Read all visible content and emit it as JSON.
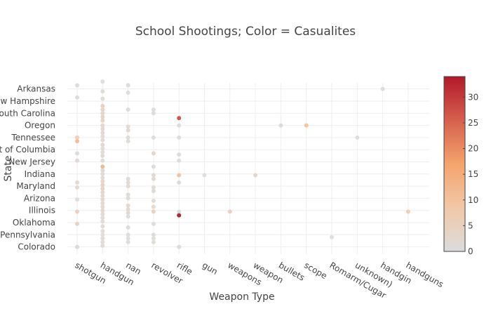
{
  "chart_data": {
    "type": "scatter",
    "title": "School Shootings; Color = Casualites",
    "xlabel": "Weapon Type",
    "ylabel": "State",
    "x_categories": [
      "shotgun",
      "handgun",
      "nan",
      "revolver",
      "rifle",
      "gun",
      "weapons",
      "weapon",
      "bullets",
      "scope",
      "Romarm/Cugar",
      "unknown)",
      "handgin",
      "handguns"
    ],
    "y_tick_labels": [
      "Arkansas",
      "New Hampshire",
      "South Carolina",
      "Oregon",
      "Tennessee",
      "District of Columbia",
      "New Jersey",
      "Indiana",
      "Maryland",
      "Arizona",
      "Illinois",
      "Oklahoma",
      "Pennsylvania",
      "Colorado"
    ],
    "y_tick_positions": [
      13,
      12,
      11,
      10,
      9,
      8,
      7,
      6,
      5,
      4,
      3,
      2,
      1,
      0
    ],
    "y_range": [
      -0.6,
      13.5
    ],
    "grid": true,
    "legend": "colorbar-right",
    "colorscale": {
      "name": "RdBu-reversed-half",
      "min": 0,
      "max": 34,
      "ticks": [
        0,
        5,
        10,
        15,
        20,
        25,
        30
      ],
      "stops": [
        "#dcdcdc",
        "#f1c8a8",
        "#f4a46c",
        "#d6604d",
        "#b2182b"
      ]
    },
    "points": [
      {
        "x": "shotgun",
        "y": 13.3,
        "c": 1
      },
      {
        "x": "handgun",
        "y": 13.6,
        "c": 0
      },
      {
        "x": "nan",
        "y": 13.3,
        "c": 1
      },
      {
        "x": "handgun",
        "y": 12.8,
        "c": 1
      },
      {
        "x": "nan",
        "y": 12.7,
        "c": 0
      },
      {
        "x": "handgin",
        "y": 13.0,
        "c": 1
      },
      {
        "x": "shotgun",
        "y": 12.3,
        "c": 1
      },
      {
        "x": "handgun",
        "y": 12.2,
        "c": 1
      },
      {
        "x": "handgun",
        "y": 11.6,
        "c": 5
      },
      {
        "x": "handgun",
        "y": 11.3,
        "c": 3
      },
      {
        "x": "handgun",
        "y": 11.0,
        "c": 3
      },
      {
        "x": "nan",
        "y": 11.3,
        "c": 1
      },
      {
        "x": "revolver",
        "y": 11.3,
        "c": 1
      },
      {
        "x": "revolver",
        "y": 11.0,
        "c": 1
      },
      {
        "x": "handgun",
        "y": 10.7,
        "c": 4
      },
      {
        "x": "handgun",
        "y": 10.4,
        "c": 4
      },
      {
        "x": "rifle",
        "y": 10.6,
        "c": 28
      },
      {
        "x": "handgun",
        "y": 10.0,
        "c": 2
      },
      {
        "x": "handgun",
        "y": 9.7,
        "c": 2
      },
      {
        "x": "nan",
        "y": 9.9,
        "c": 1
      },
      {
        "x": "rifle",
        "y": 10.0,
        "c": 1
      },
      {
        "x": "bullets",
        "y": 10.0,
        "c": 1
      },
      {
        "x": "scope",
        "y": 10.0,
        "c": 10
      },
      {
        "x": "handgun",
        "y": 9.4,
        "c": 2
      },
      {
        "x": "nan",
        "y": 9.6,
        "c": 2
      },
      {
        "x": "handgun",
        "y": 9.1,
        "c": 1
      },
      {
        "x": "shotgun",
        "y": 9.0,
        "c": 7
      },
      {
        "x": "shotgun",
        "y": 8.7,
        "c": 12
      },
      {
        "x": "handgun",
        "y": 8.8,
        "c": 2
      },
      {
        "x": "nan",
        "y": 9.0,
        "c": 1
      },
      {
        "x": "nan",
        "y": 8.7,
        "c": 1
      },
      {
        "x": "revolver",
        "y": 9.0,
        "c": 1
      },
      {
        "x": "rifle",
        "y": 9.0,
        "c": 1
      },
      {
        "x": "unknown)",
        "y": 9.0,
        "c": 1
      },
      {
        "x": "handgun",
        "y": 8.4,
        "c": 2
      },
      {
        "x": "handgun",
        "y": 8.1,
        "c": 1
      },
      {
        "x": "handgun",
        "y": 7.8,
        "c": 1
      },
      {
        "x": "shotgun",
        "y": 7.7,
        "c": 1
      },
      {
        "x": "revolver",
        "y": 7.7,
        "c": 4
      },
      {
        "x": "rifle",
        "y": 7.6,
        "c": 1
      },
      {
        "x": "handgun",
        "y": 7.5,
        "c": 2
      },
      {
        "x": "shotgun",
        "y": 7.1,
        "c": 2
      },
      {
        "x": "handgun",
        "y": 7.1,
        "c": 1
      },
      {
        "x": "rifle",
        "y": 7.1,
        "c": 1
      },
      {
        "x": "handgun",
        "y": 6.6,
        "c": 13
      },
      {
        "x": "revolver",
        "y": 6.6,
        "c": 1
      },
      {
        "x": "handgun",
        "y": 6.3,
        "c": 2
      },
      {
        "x": "handgun",
        "y": 6.0,
        "c": 1
      },
      {
        "x": "handgun",
        "y": 5.7,
        "c": 1
      },
      {
        "x": "revolver",
        "y": 5.9,
        "c": 2
      },
      {
        "x": "rifle",
        "y": 5.9,
        "c": 10
      },
      {
        "x": "gun",
        "y": 5.9,
        "c": 1
      },
      {
        "x": "weapon",
        "y": 5.9,
        "c": 3
      },
      {
        "x": "nan",
        "y": 5.6,
        "c": 1
      },
      {
        "x": "revolver",
        "y": 5.6,
        "c": 2
      },
      {
        "x": "shotgun",
        "y": 5.3,
        "c": 2
      },
      {
        "x": "handgun",
        "y": 5.4,
        "c": 3
      },
      {
        "x": "nan",
        "y": 5.3,
        "c": 1
      },
      {
        "x": "rifle",
        "y": 5.3,
        "c": 1
      },
      {
        "x": "shotgun",
        "y": 4.9,
        "c": 2
      },
      {
        "x": "handgun",
        "y": 5.1,
        "c": 5
      },
      {
        "x": "nan",
        "y": 5.0,
        "c": 2
      },
      {
        "x": "handgun",
        "y": 4.8,
        "c": 5
      },
      {
        "x": "revolver",
        "y": 4.9,
        "c": 1
      },
      {
        "x": "revolver",
        "y": 4.6,
        "c": 2
      },
      {
        "x": "handgun",
        "y": 4.5,
        "c": 3
      },
      {
        "x": "handgun",
        "y": 4.2,
        "c": 2
      },
      {
        "x": "nan",
        "y": 4.3,
        "c": 1
      },
      {
        "x": "shotgun",
        "y": 3.9,
        "c": 0
      },
      {
        "x": "handgun",
        "y": 3.9,
        "c": 3
      },
      {
        "x": "nan",
        "y": 4.0,
        "c": 1
      },
      {
        "x": "revolver",
        "y": 3.8,
        "c": 1
      },
      {
        "x": "handgun",
        "y": 3.6,
        "c": 2
      },
      {
        "x": "handgun",
        "y": 3.3,
        "c": 3
      },
      {
        "x": "nan",
        "y": 3.4,
        "c": 2
      },
      {
        "x": "nan",
        "y": 3.1,
        "c": 3
      },
      {
        "x": "revolver",
        "y": 3.3,
        "c": 1
      },
      {
        "x": "handgun",
        "y": 3.0,
        "c": 3
      },
      {
        "x": "shotgun",
        "y": 2.9,
        "c": 5
      },
      {
        "x": "handgun",
        "y": 2.7,
        "c": 2
      },
      {
        "x": "nan",
        "y": 2.8,
        "c": 2
      },
      {
        "x": "revolver",
        "y": 2.9,
        "c": 5
      },
      {
        "x": "rifle",
        "y": 2.9,
        "c": 1
      },
      {
        "x": "weapons",
        "y": 2.9,
        "c": 5
      },
      {
        "x": "handguns",
        "y": 2.9,
        "c": 6
      },
      {
        "x": "nan",
        "y": 2.5,
        "c": 1
      },
      {
        "x": "rifle",
        "y": 2.6,
        "c": 34
      },
      {
        "x": "handgun",
        "y": 2.4,
        "c": 1
      },
      {
        "x": "handgun",
        "y": 2.1,
        "c": 1
      },
      {
        "x": "shotgun",
        "y": 1.9,
        "c": 5
      },
      {
        "x": "revolver",
        "y": 1.9,
        "c": 1
      },
      {
        "x": "handgun",
        "y": 1.7,
        "c": 1
      },
      {
        "x": "nan",
        "y": 1.6,
        "c": 1
      },
      {
        "x": "handgun",
        "y": 1.3,
        "c": 1
      },
      {
        "x": "handgun",
        "y": 1.0,
        "c": 1
      },
      {
        "x": "nan",
        "y": 1.0,
        "c": 0
      },
      {
        "x": "revolver",
        "y": 1.0,
        "c": 1
      },
      {
        "x": "Romarm/Cugar",
        "y": 0.8,
        "c": 0
      },
      {
        "x": "handgun",
        "y": 0.7,
        "c": 1
      },
      {
        "x": "nan",
        "y": 0.7,
        "c": 0
      },
      {
        "x": "revolver",
        "y": 0.7,
        "c": 1
      },
      {
        "x": "revolver",
        "y": 0.4,
        "c": 1
      },
      {
        "x": "handgun",
        "y": 0.4,
        "c": 1
      },
      {
        "x": "nan",
        "y": 0.4,
        "c": 1
      },
      {
        "x": "handgun",
        "y": 0.1,
        "c": 1
      },
      {
        "x": "shotgun",
        "y": 0.0,
        "c": 7
      },
      {
        "x": "shotgun",
        "y": 0.0,
        "c": 0
      },
      {
        "x": "rifle",
        "y": 0.0,
        "c": 1
      }
    ]
  }
}
